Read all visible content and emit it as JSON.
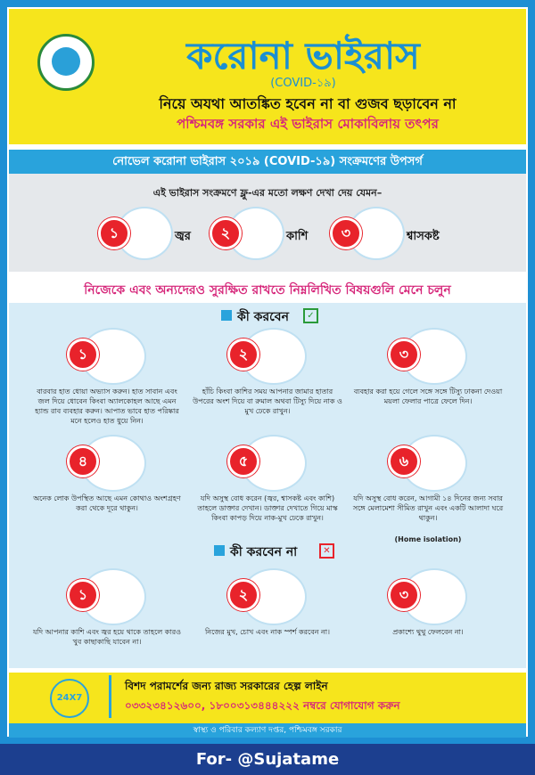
{
  "header": {
    "title": "করোনা ভাইরাস",
    "subtitle": "(COVID-১৯)",
    "line1": "নিয়ে অযথা আতঙ্কিত হবেন না বা গুজব ছড়াবেন না",
    "line2": "পশ্চিমবঙ্গ সরকার এই ভাইরাস মোকাবিলায় তৎপর"
  },
  "symptoms": {
    "banner": "নোভেল করোনা ভাইরাস ২০১৯ (COVID-১৯) সংক্রমণের উপসর্গ",
    "intro": "এই ভাইরাস সংক্রমণে ফ্লু-এর মতো লক্ষণ দেখা দেয় যেমন–",
    "items": [
      {
        "number": "১",
        "label": "জ্বর"
      },
      {
        "number": "২",
        "label": "কাশি"
      },
      {
        "number": "৩",
        "label": "শ্বাসকষ্ট"
      }
    ]
  },
  "advice": "নিজেকে এবং অন্যদেরও সুরক্ষিত রাখতে নিম্নলিখিত বিষয়গুলি মেনে চলুন",
  "dos": {
    "heading": "কী করবেন",
    "items": [
      {
        "number": "১",
        "text": "বারবার হাত ধোয়া অভ্যাস করুন। হাত সাবান এবং জল দিয়ে ধোবেন কিংবা অ্যালকোহল আছে এমন হ্যান্ড রাব ব্যবহার করুন। আপাত ভাবে হাত পরিষ্কার মনে হলেও হাত ধুয়ে নিন।"
      },
      {
        "number": "২",
        "text": "হাঁচি কিংবা কাশির সময় আপনার জামার হাতার উপরের অংশ দিয়ে বা রুমাল অথবা টিস্যু দিয়ে নাক ও মুখ ঢেকে রাখুন।"
      },
      {
        "number": "৩",
        "text": "ব্যবহার করা হয়ে গেলে সঙ্গে সঙ্গে টিস্যু ঢাকনা দেওয়া ময়লা ফেলার পাত্রে ফেলে দিন।"
      },
      {
        "number": "৪",
        "text": "অনেক লোক উপস্থিত আছে এমন কোথাও অংশগ্রহণ করা থেকে দূরে থাকুন।"
      },
      {
        "number": "৫",
        "text": "যদি অসুস্থ বোধ করেন (জ্বর, শ্বাসকষ্ট এবং কাশি) তাহলে ডাক্তার দেখান। ডাক্তার দেখাতে গিয়ে মাস্ক কিংবা কাপড় দিয়ে নাক-মুখ ঢেকে রাখুন।"
      },
      {
        "number": "৬",
        "text": "যদি অসুস্থ বোধ করেন, আগামী ১৪ দিনের জন্য সবার সঙ্গে মেলামেশা সীমিত রাখুন এবং একটি আলাদা ঘরে থাকুন।",
        "note": "(Home isolation)"
      }
    ]
  },
  "donts": {
    "heading": "কী করবেন না",
    "items": [
      {
        "number": "১",
        "text": "যদি আপনার কাশি এবং জ্বর হয়ে থাকে তাহলে কারও খুব কাছাকাছি যাবেন না।"
      },
      {
        "number": "২",
        "text": "নিজের মুখ, চোখ এবং নাক স্পর্শ করবেন না।"
      },
      {
        "number": "৩",
        "text": "প্রকাশ্যে থুথু ফেলবেন না।"
      }
    ]
  },
  "helpline": {
    "badge": "24X7",
    "title": "বিশদ পরামর্শের জন্য রাজ্য সরকারের হেল্প লাইন",
    "numbers": "০৩৩২৩৪১২৬০০, ১৮০০৩১৩৪৪৪২২২ নম্বরে যোগাযোগ করুন"
  },
  "footer": "স্বাস্থ্য ও পরিবার কল্যাণ দপ্তর, পশ্চিমবঙ্গ সরকার",
  "credit": "For- @Sujatame"
}
